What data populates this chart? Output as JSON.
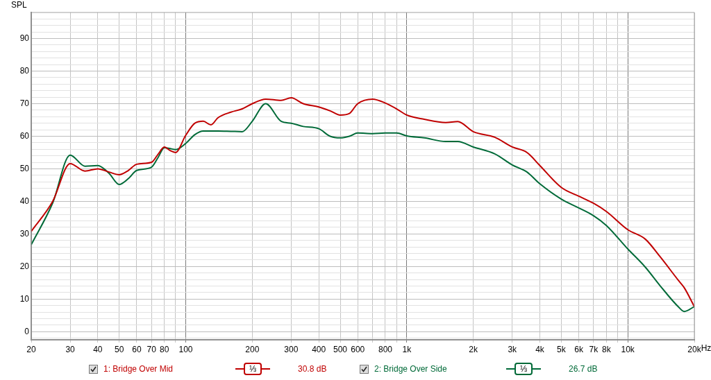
{
  "chart_data": {
    "type": "line",
    "ylabel": "SPL",
    "x": [
      20,
      25,
      30,
      35,
      40,
      45,
      50,
      55,
      60,
      70,
      75,
      80,
      85,
      90,
      100,
      110,
      120,
      130,
      140,
      160,
      180,
      200,
      230,
      270,
      300,
      340,
      400,
      450,
      500,
      550,
      600,
      700,
      800,
      900,
      1000,
      1200,
      1500,
      1700,
      2000,
      2500,
      3000,
      3500,
      4000,
      5000,
      6000,
      7000,
      8000,
      10000,
      12000,
      14000,
      17000,
      18000,
      20000
    ],
    "series": [
      {
        "name": "1: Bridge Over Mid",
        "color": "#c00000",
        "values": [
          30.8,
          40,
          51.6,
          49.3,
          50,
          49,
          48.2,
          49.5,
          51.4,
          52,
          54.5,
          56.7,
          55.6,
          55,
          60.3,
          64,
          64.6,
          63.5,
          65.7,
          67.4,
          68.4,
          70,
          71.4,
          71,
          71.8,
          70,
          69,
          67.8,
          66.5,
          67,
          70,
          71.4,
          70.2,
          68.4,
          66.5,
          65.2,
          64.2,
          64.5,
          61.4,
          59.7,
          56.7,
          55,
          51,
          44.3,
          41.6,
          39.4,
          36.9,
          31.3,
          28.4,
          23,
          15.6,
          13.5,
          7.7
        ]
      },
      {
        "name": "2: Bridge Over Side",
        "color": "#006a38",
        "values": [
          26.7,
          39.5,
          54.2,
          50.8,
          51,
          48.6,
          45.2,
          47,
          49.5,
          50.5,
          53.5,
          56.5,
          56.2,
          55.9,
          57.8,
          60.5,
          61.6,
          61.6,
          61.6,
          61.5,
          61.4,
          64.6,
          70,
          64.6,
          64,
          63,
          62.3,
          60,
          59.5,
          60,
          61,
          60.8,
          61,
          61,
          60.1,
          59.5,
          58.4,
          58.4,
          56.7,
          54.6,
          51.2,
          49,
          45.4,
          40.7,
          38,
          35.6,
          32.6,
          25.4,
          19.8,
          14.1,
          7.5,
          6.2,
          7.7
        ]
      }
    ],
    "xlim": [
      20,
      20000
    ],
    "ylim": [
      -2.5,
      98
    ],
    "log": "x",
    "xticks": [
      20,
      30,
      40,
      50,
      60,
      70,
      80,
      {
        "value": 90,
        "label": null
      },
      100,
      200,
      300,
      400,
      500,
      600,
      {
        "value": 700,
        "label": null
      },
      800,
      {
        "value": 900,
        "label": null
      },
      {
        "value": 1000,
        "label": "1k"
      },
      {
        "value": 2000,
        "label": "2k"
      },
      {
        "value": 3000,
        "label": "3k"
      },
      {
        "value": 4000,
        "label": "4k"
      },
      {
        "value": 5000,
        "label": "5k"
      },
      {
        "value": 6000,
        "label": "6k"
      },
      {
        "value": 7000,
        "label": "7k"
      },
      {
        "value": 8000,
        "label": "8k"
      },
      {
        "value": 9000,
        "label": null
      },
      {
        "value": 10000,
        "label": "10k"
      },
      {
        "value": 20000,
        "label": "20k"
      }
    ],
    "xlabel": "Hz",
    "yticks": [
      {
        "value": -2,
        "label": null
      },
      0,
      {
        "value": 2,
        "label": null
      },
      {
        "value": 4,
        "label": null
      },
      {
        "value": 6,
        "label": null
      },
      {
        "value": 8,
        "label": null
      },
      10,
      {
        "value": 12,
        "label": null
      },
      {
        "value": 14,
        "label": null
      },
      {
        "value": 16,
        "label": null
      },
      {
        "value": 18,
        "label": null
      },
      20,
      {
        "value": 22,
        "label": null
      },
      {
        "value": 24,
        "label": null
      },
      {
        "value": 26,
        "label": null
      },
      {
        "value": 28,
        "label": null
      },
      30,
      {
        "value": 32,
        "label": null
      },
      {
        "value": 34,
        "label": null
      },
      {
        "value": 36,
        "label": null
      },
      {
        "value": 38,
        "label": null
      },
      40,
      {
        "value": 42,
        "label": null
      },
      {
        "value": 44,
        "label": null
      },
      {
        "value": 46,
        "label": null
      },
      {
        "value": 48,
        "label": null
      },
      50,
      {
        "value": 52,
        "label": null
      },
      {
        "value": 54,
        "label": null
      },
      {
        "value": 56,
        "label": null
      },
      {
        "value": 58,
        "label": null
      },
      60,
      {
        "value": 62,
        "label": null
      },
      {
        "value": 64,
        "label": null
      },
      {
        "value": 66,
        "label": null
      },
      {
        "value": 68,
        "label": null
      },
      70,
      {
        "value": 72,
        "label": null
      },
      {
        "value": 74,
        "label": null
      },
      {
        "value": 76,
        "label": null
      },
      {
        "value": 78,
        "label": null
      },
      80,
      {
        "value": 82,
        "label": null
      },
      {
        "value": 84,
        "label": null
      },
      {
        "value": 86,
        "label": null
      },
      {
        "value": 88,
        "label": null
      },
      90,
      {
        "value": 92,
        "label": null
      },
      {
        "value": 94,
        "label": null
      },
      {
        "value": 96,
        "label": null
      }
    ],
    "grid": true,
    "legend": "bottom",
    "marker": "none",
    "line_style": "solid",
    "annotations": [
      "⅓",
      "30.8 dB",
      "⅓",
      "26.7 dB"
    ]
  }
}
